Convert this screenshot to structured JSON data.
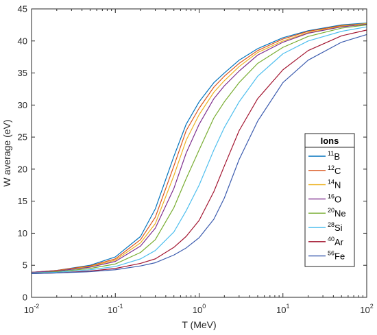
{
  "chart_data": {
    "type": "line",
    "xlabel": "T (MeV)",
    "ylabel": "W average (eV)",
    "xscale": "log",
    "xlim": [
      0.01,
      100
    ],
    "ylim": [
      0,
      45
    ],
    "grid": false,
    "x_tick_labels": [
      {
        "base": "10",
        "exp": "-2"
      },
      {
        "base": "10",
        "exp": "-1"
      },
      {
        "base": "10",
        "exp": "0"
      },
      {
        "base": "10",
        "exp": "1"
      },
      {
        "base": "10",
        "exp": "2"
      }
    ],
    "y_tick_labels": [
      "0",
      "5",
      "10",
      "15",
      "20",
      "25",
      "30",
      "35",
      "40",
      "45"
    ],
    "legend": {
      "title": "Ions",
      "placement": "right",
      "entries": [
        {
          "mass": "11",
          "symbol": "B"
        },
        {
          "mass": "12",
          "symbol": "C"
        },
        {
          "mass": "14",
          "symbol": "N"
        },
        {
          "mass": "16",
          "symbol": "O"
        },
        {
          "mass": "20",
          "symbol": "Ne"
        },
        {
          "mass": "28",
          "symbol": "Si"
        },
        {
          "mass": "40",
          "symbol": "Ar"
        },
        {
          "mass": "56",
          "symbol": "Fe"
        }
      ]
    },
    "x": [
      0.01,
      0.02,
      0.05,
      0.1,
      0.2,
      0.3,
      0.5,
      0.7,
      1,
      1.5,
      2,
      3,
      5,
      10,
      20,
      50,
      100
    ],
    "series": [
      {
        "color": "#0072BD",
        "values": [
          3.9,
          4.2,
          5.0,
          6.3,
          9.5,
          13.8,
          22.0,
          27.0,
          30.5,
          33.5,
          35.0,
          37.0,
          38.8,
          40.5,
          41.6,
          42.5,
          42.8
        ]
      },
      {
        "color": "#D95319",
        "values": [
          3.9,
          4.2,
          4.9,
          6.0,
          9.0,
          12.5,
          20.5,
          26.0,
          29.5,
          32.8,
          34.5,
          36.5,
          38.5,
          40.3,
          41.5,
          42.4,
          42.7
        ]
      },
      {
        "color": "#EDB120",
        "values": [
          3.9,
          4.1,
          4.8,
          5.8,
          8.5,
          11.5,
          19.0,
          24.5,
          28.5,
          32.0,
          33.8,
          36.0,
          38.2,
          40.0,
          41.3,
          42.3,
          42.7
        ]
      },
      {
        "color": "#7E2F8E",
        "values": [
          3.9,
          4.1,
          4.7,
          5.6,
          8.0,
          10.8,
          17.0,
          22.5,
          27.0,
          31.0,
          33.0,
          35.3,
          37.8,
          39.8,
          41.2,
          42.2,
          42.6
        ]
      },
      {
        "color": "#77AC30",
        "values": [
          3.8,
          4.0,
          4.5,
          5.2,
          7.0,
          9.0,
          14.0,
          18.5,
          23.0,
          28.0,
          30.5,
          33.5,
          36.5,
          39.0,
          40.7,
          42.0,
          42.5
        ]
      },
      {
        "color": "#4DBEEE",
        "values": [
          3.8,
          3.9,
          4.3,
          4.8,
          6.0,
          7.3,
          10.2,
          13.5,
          17.5,
          23.0,
          26.5,
          30.5,
          34.5,
          38.0,
          40.0,
          41.5,
          42.2
        ]
      },
      {
        "color": "#A2142F",
        "values": [
          3.7,
          3.8,
          4.1,
          4.5,
          5.3,
          6.0,
          7.8,
          9.5,
          12.0,
          16.5,
          20.5,
          26.0,
          31.0,
          35.5,
          38.5,
          40.8,
          41.7
        ]
      },
      {
        "color": "#3B5BAE",
        "values": [
          3.7,
          3.8,
          4.0,
          4.3,
          4.9,
          5.4,
          6.6,
          7.7,
          9.3,
          12.2,
          15.5,
          21.5,
          27.5,
          33.5,
          37.0,
          39.8,
          41.0
        ]
      }
    ]
  }
}
